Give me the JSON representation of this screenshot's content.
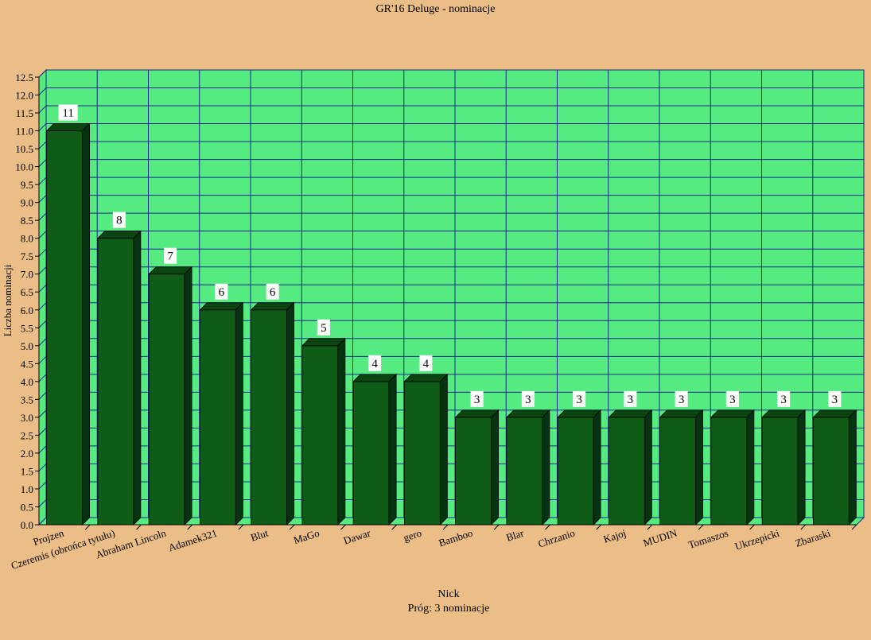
{
  "chart_data": {
    "type": "bar",
    "title": "GR'16 Deluge - nominacje",
    "subtitle": "Próg: 3 nominacje",
    "xlabel": "Nick",
    "ylabel": "Liczba nominacji",
    "categories": [
      "Projzen",
      "Czeremis (obrońca tytułu)",
      "Abraham Lincoln",
      "Adamek321",
      "Blut",
      "MaGo",
      "Dawar",
      "gero",
      "Bamboo",
      "Blar",
      "Chrzanio",
      "Kajoj",
      "MUDIN",
      "Tomaszos",
      "Ukrzepicki",
      "Zbaraski"
    ],
    "values": [
      11,
      8,
      7,
      6,
      6,
      5,
      4,
      4,
      3,
      3,
      3,
      3,
      3,
      3,
      3,
      3
    ],
    "ylim": [
      0,
      12.5
    ],
    "yticks": [
      "0.0",
      "0.5",
      "1.0",
      "1.5",
      "2.0",
      "2.5",
      "3.0",
      "3.5",
      "4.0",
      "4.5",
      "5.0",
      "5.5",
      "6.0",
      "6.5",
      "7.0",
      "7.5",
      "8.0",
      "8.5",
      "9.0",
      "9.5",
      "10.0",
      "10.5",
      "11.0",
      "11.5",
      "12.0",
      "12.5"
    ],
    "grid": true,
    "colors": {
      "background": "#EBBE88",
      "plot": "#55EB80",
      "grid": "#1A2A8A",
      "bar_front": "#0E5C16",
      "bar_side": "#063310",
      "bar_top": "#0A4512"
    }
  }
}
